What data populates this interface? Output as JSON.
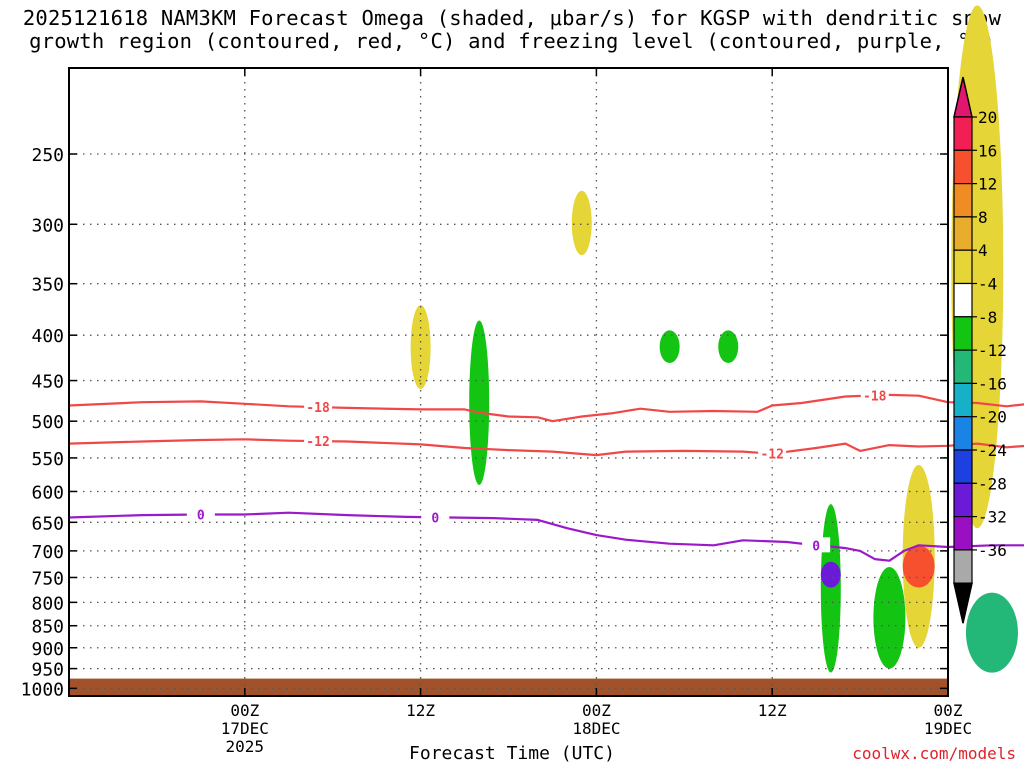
{
  "title": {
    "line1": "2025121618 NAM3KM Forecast Omega (shaded, μbar/s) for KGSP with dendritic snow",
    "line2": "growth region (contoured, red, °C) and freezing level (contoured, purple, °C)"
  },
  "credit": "coolwx.com/models",
  "colors": {
    "dgz_contour": "#f04848",
    "freezing_contour": "#9b19c8",
    "ground": "#a1522b",
    "grid": "#555555"
  },
  "chart_data": {
    "type": "time-height",
    "xlabel": "Forecast Time (UTC)",
    "ylabel": "Pressure (hPa)",
    "x_hours_range": [
      -6,
      54
    ],
    "y_pressure_range": [
      200,
      1020
    ],
    "y_ticks": [
      250,
      300,
      350,
      400,
      450,
      500,
      550,
      600,
      650,
      700,
      750,
      800,
      850,
      900,
      950,
      1000
    ],
    "x_ticks": [
      {
        "hour": 6,
        "line1": "00Z",
        "line2": "17DEC",
        "line3": "2025"
      },
      {
        "hour": 18,
        "line1": "12Z",
        "line2": "",
        "line3": ""
      },
      {
        "hour": 30,
        "line1": "00Z",
        "line2": "18DEC",
        "line3": ""
      },
      {
        "hour": 42,
        "line1": "12Z",
        "line2": "",
        "line3": ""
      },
      {
        "hour": 54,
        "line1": "00Z",
        "line2": "19DEC",
        "line3": ""
      }
    ],
    "colorbar": {
      "unit": "μbar/s",
      "labels": [
        "20",
        "16",
        "12",
        "8",
        "4",
        "-4",
        "-8",
        "-12",
        "-16",
        "-20",
        "-24",
        "-28",
        "-32",
        "-36"
      ],
      "bins": [
        {
          "color": "#f21f55"
        },
        {
          "color": "#f6502e"
        },
        {
          "color": "#ef8c24"
        },
        {
          "color": "#e8ad2d"
        },
        {
          "color": "#e5d536"
        },
        {
          "color": "#ffffff"
        },
        {
          "color": "#13c413"
        },
        {
          "color": "#23b877"
        },
        {
          "color": "#16b0c9"
        },
        {
          "color": "#1a84e6"
        },
        {
          "color": "#1e40e0"
        },
        {
          "color": "#6b1bd8"
        },
        {
          "color": "#9b0fc4"
        },
        {
          "color": "#a9a9a9"
        }
      ],
      "top_arrow_color": "#e0166f",
      "bottom_arrow_color": "#000000"
    },
    "contours": [
      {
        "name": "dgz-minus18",
        "label": "-18",
        "color": "#f04848",
        "x": [
          -6,
          -1,
          3,
          6,
          9,
          13,
          18,
          21,
          22,
          24,
          26,
          27,
          29,
          31,
          33,
          35,
          38,
          41,
          42,
          44,
          47,
          50,
          52,
          54,
          56,
          58,
          60
        ],
        "y": [
          480,
          476,
          475,
          478,
          481,
          483,
          485,
          485,
          489,
          494,
          495,
          500,
          494,
          490,
          484,
          488,
          487,
          488,
          480,
          477,
          469,
          467,
          468,
          476,
          477,
          481,
          477
        ]
      },
      {
        "name": "dgz-minus12",
        "label": "-12",
        "color": "#f04848",
        "x": [
          -6,
          -1,
          3,
          6,
          9,
          13,
          18,
          21,
          22,
          24,
          27,
          30,
          32,
          36,
          40,
          42,
          45,
          47,
          48,
          50,
          52,
          54,
          56,
          58,
          60
        ],
        "y": [
          530,
          527,
          525,
          524,
          526,
          527,
          531,
          536,
          537,
          539,
          541,
          546,
          541,
          540,
          541,
          544,
          536,
          530,
          540,
          532,
          534,
          533,
          530,
          535,
          532
        ]
      },
      {
        "name": "freezing-level",
        "label": "0",
        "color": "#9b19c8",
        "x": [
          -6,
          -1,
          3,
          6,
          9,
          13,
          17,
          20,
          23,
          26,
          28,
          30,
          32,
          35,
          38,
          40,
          43,
          45,
          46,
          47,
          48,
          49,
          50,
          51,
          52,
          54,
          57,
          60
        ],
        "y": [
          642,
          638,
          637,
          637,
          634,
          638,
          641,
          642,
          643,
          646,
          660,
          672,
          680,
          687,
          690,
          681,
          684,
          690,
          692,
          695,
          700,
          715,
          718,
          700,
          690,
          693,
          690,
          690
        ]
      }
    ],
    "omega_regions_approx": [
      {
        "color": "#e5d536",
        "hour": 18,
        "top": 370,
        "bottom": 460
      },
      {
        "color": "#13c413",
        "hour": 22,
        "top": 385,
        "bottom": 590
      },
      {
        "color": "#e5d536",
        "hour": 29,
        "top": 275,
        "bottom": 325
      },
      {
        "color": "#13c413",
        "hour": 35,
        "top": 395,
        "bottom": 430
      },
      {
        "color": "#13c413",
        "hour": 39,
        "top": 395,
        "bottom": 430
      },
      {
        "color": "#13c413",
        "hour": 46,
        "top": 620,
        "bottom": 960
      },
      {
        "color": "#6b1bd8",
        "hour": 46,
        "top": 720,
        "bottom": 770
      },
      {
        "color": "#13c413",
        "hour": 50,
        "top": 730,
        "bottom": 950
      },
      {
        "color": "#e5d536",
        "hour": 52,
        "top": 560,
        "bottom": 900
      },
      {
        "color": "#f6502e",
        "hour": 52,
        "top": 690,
        "bottom": 770
      },
      {
        "color": "#e5d536",
        "hour": 56,
        "top": 170,
        "bottom": 660
      },
      {
        "color": "#23b877",
        "hour": 57,
        "top": 780,
        "bottom": 960
      }
    ],
    "ground_level": 975
  }
}
